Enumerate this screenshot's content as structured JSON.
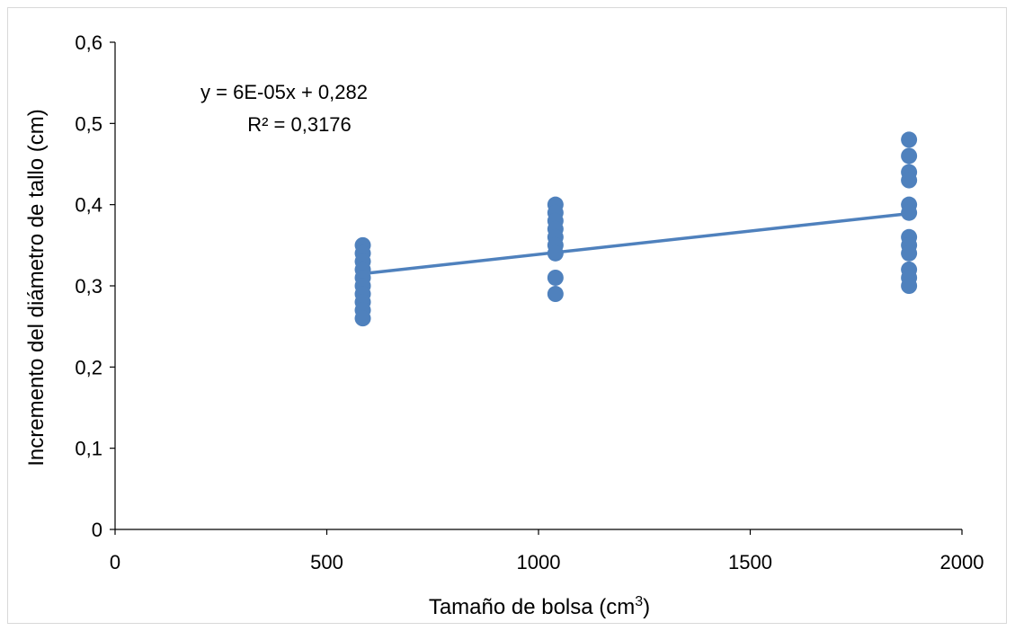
{
  "chart_data": {
    "type": "scatter",
    "title": "",
    "xlabel": "Tamaño de bolsa (cm",
    "xlabel_sup": "3",
    "xlabel_close": ")",
    "ylabel": "Incremento del diámetro de tallo (cm)",
    "xlim": [
      0,
      2000
    ],
    "ylim": [
      0,
      0.6
    ],
    "x_ticks": [
      0,
      500,
      1000,
      1500,
      2000
    ],
    "x_tick_labels": [
      "0",
      "500",
      "1000",
      "1500",
      "2000"
    ],
    "y_ticks": [
      0,
      0.1,
      0.2,
      0.3,
      0.4,
      0.5,
      0.6
    ],
    "y_tick_labels": [
      "0",
      "0,1",
      "0,2",
      "0,3",
      "0,4",
      "0,5",
      "0,6"
    ],
    "grid": false,
    "legend": "none",
    "marker_color": "#4f81bd",
    "trendline_color": "#4f81bd",
    "points": [
      {
        "x": 585,
        "y": 0.35
      },
      {
        "x": 585,
        "y": 0.34
      },
      {
        "x": 585,
        "y": 0.33
      },
      {
        "x": 585,
        "y": 0.32
      },
      {
        "x": 585,
        "y": 0.31
      },
      {
        "x": 585,
        "y": 0.3
      },
      {
        "x": 585,
        "y": 0.29
      },
      {
        "x": 585,
        "y": 0.28
      },
      {
        "x": 585,
        "y": 0.27
      },
      {
        "x": 585,
        "y": 0.26
      },
      {
        "x": 1040,
        "y": 0.4
      },
      {
        "x": 1040,
        "y": 0.39
      },
      {
        "x": 1040,
        "y": 0.38
      },
      {
        "x": 1040,
        "y": 0.37
      },
      {
        "x": 1040,
        "y": 0.36
      },
      {
        "x": 1040,
        "y": 0.35
      },
      {
        "x": 1040,
        "y": 0.34
      },
      {
        "x": 1040,
        "y": 0.31
      },
      {
        "x": 1040,
        "y": 0.29
      },
      {
        "x": 1875,
        "y": 0.48
      },
      {
        "x": 1875,
        "y": 0.46
      },
      {
        "x": 1875,
        "y": 0.44
      },
      {
        "x": 1875,
        "y": 0.43
      },
      {
        "x": 1875,
        "y": 0.4
      },
      {
        "x": 1875,
        "y": 0.39
      },
      {
        "x": 1875,
        "y": 0.36
      },
      {
        "x": 1875,
        "y": 0.35
      },
      {
        "x": 1875,
        "y": 0.34
      },
      {
        "x": 1875,
        "y": 0.32
      },
      {
        "x": 1875,
        "y": 0.31
      },
      {
        "x": 1875,
        "y": 0.3
      }
    ],
    "trendline": {
      "x_start": 585,
      "y_start": 0.315,
      "x_end": 1875,
      "y_end": 0.389,
      "equation": "y = 6E-05x + 0,282",
      "r_squared": "R² = 0,3176"
    }
  }
}
